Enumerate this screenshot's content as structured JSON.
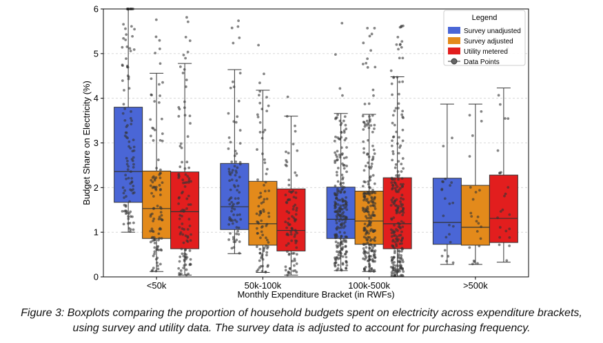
{
  "caption": "Figure 3: Boxplots comparing the proportion of household budgets spent on electricity across expenditure brackets, using survey and utility data. The survey data is adjusted to account for purchasing frequency.",
  "chart_data": {
    "type": "boxplot",
    "title": "",
    "xlabel": "Monthly Expenditure Bracket (in RWFs)",
    "ylabel": "Budget Share on Electricity (%)",
    "ylim": [
      0,
      6
    ],
    "yticks": [
      "0",
      "1",
      "2",
      "3",
      "4",
      "5",
      "6"
    ],
    "grid": "horizontal dashed",
    "categories": [
      "<50k",
      "50k-100k",
      "100k-500k",
      ">500k"
    ],
    "legend": {
      "title": "Legend",
      "position": "top-right",
      "entries": [
        "Survey unadjusted",
        "Survey adjusted",
        "Utility metered",
        "Data Points"
      ]
    },
    "series": [
      {
        "name": "Survey unadjusted",
        "color": "#4a66d6",
        "boxes": [
          {
            "whisker_low": 1.0,
            "q1": 1.67,
            "median": 2.36,
            "q3": 3.8,
            "whisker_high": 6.0,
            "points": 110
          },
          {
            "whisker_low": 0.52,
            "q1": 1.06,
            "median": 1.57,
            "q3": 2.54,
            "whisker_high": 4.64,
            "points": 90
          },
          {
            "whisker_low": 0.14,
            "q1": 0.86,
            "median": 1.29,
            "q3": 2.01,
            "whisker_high": 3.66,
            "points": 230
          },
          {
            "whisker_low": 0.28,
            "q1": 0.73,
            "median": 1.22,
            "q3": 2.21,
            "whisker_high": 3.87,
            "points": 24
          }
        ]
      },
      {
        "name": "Survey adjusted",
        "color": "#e38a1b",
        "boxes": [
          {
            "whisker_low": 0.12,
            "q1": 0.86,
            "median": 1.53,
            "q3": 2.37,
            "whisker_high": 4.56,
            "points": 110
          },
          {
            "whisker_low": 0.1,
            "q1": 0.71,
            "median": 1.19,
            "q3": 2.14,
            "whisker_high": 4.18,
            "points": 90
          },
          {
            "whisker_low": 0.12,
            "q1": 0.73,
            "median": 1.25,
            "q3": 1.92,
            "whisker_high": 3.64,
            "points": 230
          },
          {
            "whisker_low": 0.28,
            "q1": 0.71,
            "median": 1.11,
            "q3": 2.05,
            "whisker_high": 3.87,
            "points": 24
          }
        ]
      },
      {
        "name": "Utility metered",
        "color": "#e21e1e",
        "boxes": [
          {
            "whisker_low": 0.04,
            "q1": 0.63,
            "median": 1.46,
            "q3": 2.35,
            "whisker_high": 4.78,
            "points": 110
          },
          {
            "whisker_low": 0.04,
            "q1": 0.58,
            "median": 1.04,
            "q3": 1.97,
            "whisker_high": 3.6,
            "points": 90
          },
          {
            "whisker_low": 0.02,
            "q1": 0.63,
            "median": 1.19,
            "q3": 2.22,
            "whisker_high": 4.48,
            "points": 230
          },
          {
            "whisker_low": 0.33,
            "q1": 0.77,
            "median": 1.31,
            "q3": 2.28,
            "whisker_high": 4.23,
            "points": 24
          }
        ]
      }
    ]
  }
}
